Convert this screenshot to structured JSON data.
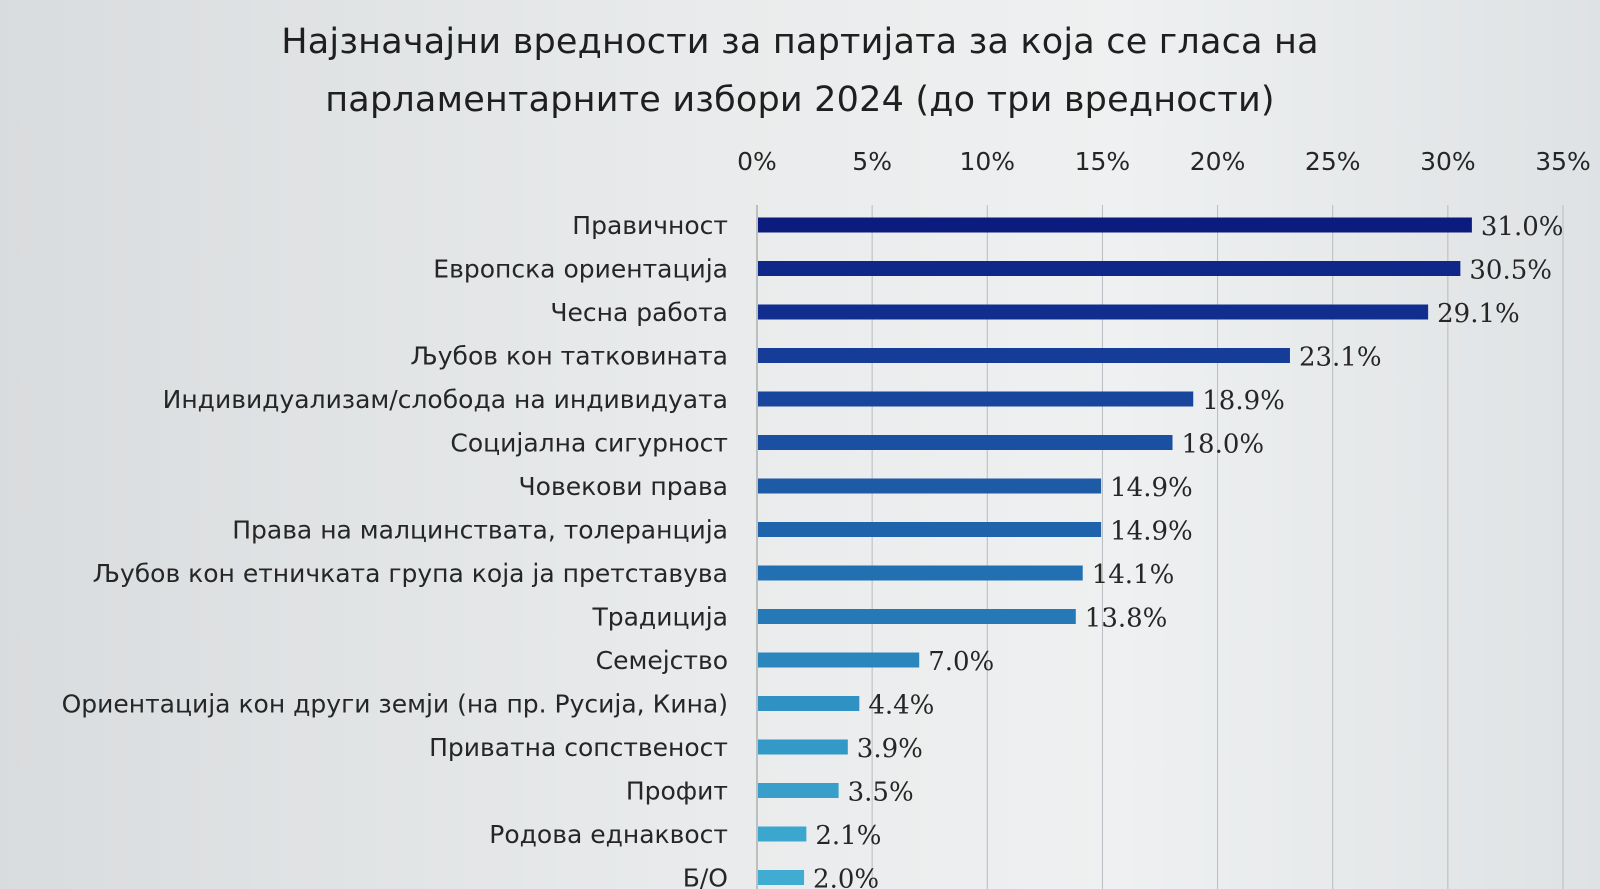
{
  "chart_data": {
    "type": "bar",
    "orientation": "horizontal",
    "title": [
      "Најзначајни вредности за партијата за која се гласа на",
      "парламентарните избори 2024 (до три вредности)"
    ],
    "categories": [
      "Правичност",
      "Европска ориентација",
      "Чесна работа",
      "Љубов кон татковината",
      "Индивидуализам/слобода на индивидуата",
      "Социјална сигурност",
      "Човекови права",
      "Права на малцинствата, толеранција",
      "Љубов кон етничката група која ја претставува",
      "Традиција",
      "Семејство",
      "Ориентација кон други земји (на пр. Русија, Кина)",
      "Приватна сопственост",
      "Профит",
      "Родова еднаквост",
      "Б/О"
    ],
    "values": [
      31.0,
      30.5,
      29.1,
      23.1,
      18.9,
      18.0,
      14.9,
      14.9,
      14.1,
      13.8,
      7.0,
      4.4,
      3.9,
      3.5,
      2.1,
      2.0
    ],
    "value_labels": [
      "31.0%",
      "30.5%",
      "29.1%",
      "23.1%",
      "18.9%",
      "18.0%",
      "14.9%",
      "14.9%",
      "14.1%",
      "13.8%",
      "7.0%",
      "4.4%",
      "3.9%",
      "3.5%",
      "2.1%",
      "2.0%"
    ],
    "xlim": [
      0,
      35
    ],
    "xticks": [
      0,
      5,
      10,
      15,
      20,
      25,
      30,
      35
    ],
    "xtick_labels": [
      "0%",
      "5%",
      "10%",
      "15%",
      "20%",
      "25%",
      "30%",
      "35%"
    ],
    "axis_position": "top",
    "grid": true,
    "bar_colors": [
      "#0b1b7e",
      "#0f2788",
      "#112e8f",
      "#153c97",
      "#17469c",
      "#1a4fa1",
      "#1d5ba7",
      "#1f63ac",
      "#2270b2",
      "#2679b7",
      "#2a86bd",
      "#2f92c3",
      "#3399c7",
      "#379fca",
      "#3ca7ce",
      "#40acd1"
    ]
  }
}
